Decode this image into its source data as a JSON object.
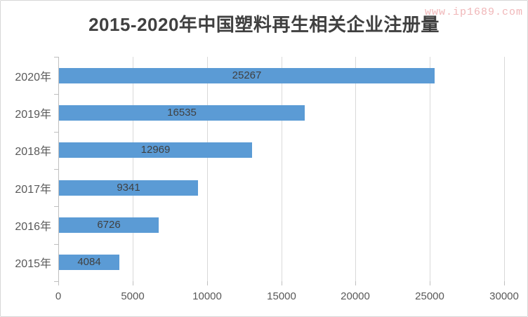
{
  "header": {
    "title": "2015-2020年中国塑料再生相关企业注册量",
    "watermark": "www.ip1689.com"
  },
  "chart_data": {
    "type": "bar",
    "orientation": "horizontal",
    "title": "2015-2020年中国塑料再生相关企业注册量",
    "categories": [
      "2020年",
      "2019年",
      "2018年",
      "2017年",
      "2016年",
      "2015年"
    ],
    "values": [
      25267,
      16535,
      12969,
      9341,
      6726,
      4084
    ],
    "data_labels": [
      "25267",
      "16535",
      "12969",
      "9341",
      "6726",
      "4084"
    ],
    "data_label_position": "inside-center",
    "x_tick_labels": [
      "0",
      "5000",
      "10000",
      "15000",
      "20000",
      "25000",
      "30000"
    ],
    "x_ticks": [
      0,
      5000,
      10000,
      15000,
      20000,
      25000,
      30000
    ],
    "xlim": [
      0,
      30000
    ],
    "xlabel": "",
    "ylabel": "",
    "grid": "vertical-gridlines-on",
    "legend": "none",
    "colors": {
      "bar": "#5b9bd5",
      "gridline": "#d9d9d9",
      "axis_line": "#bfbfbf",
      "axis_text": "#595959",
      "data_label_text": "#404040",
      "title_text": "#404040",
      "watermark_text": "#f0b6b8",
      "background": "#ffffff",
      "border": "#d7d7d7"
    }
  }
}
